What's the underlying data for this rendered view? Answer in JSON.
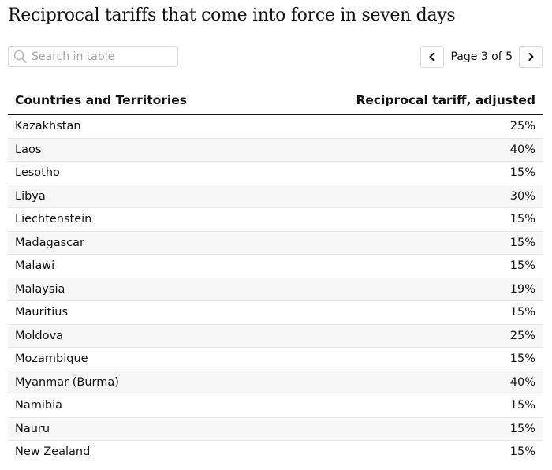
{
  "title": "Reciprocal tariffs that come into force in seven days",
  "search": {
    "placeholder": "Search in table",
    "value": "",
    "icon": "search-icon"
  },
  "pagination": {
    "label": "Page 3 of 5",
    "prev_icon": "chevron-left-icon",
    "next_icon": "chevron-right-icon"
  },
  "table": {
    "headers": [
      "Countries and Territories",
      "Reciprocal tariff, adjusted"
    ],
    "rows": [
      {
        "country": "Kazakhstan",
        "tariff": "25%"
      },
      {
        "country": "Laos",
        "tariff": "40%"
      },
      {
        "country": "Lesotho",
        "tariff": "15%"
      },
      {
        "country": "Libya",
        "tariff": "30%"
      },
      {
        "country": "Liechtenstein",
        "tariff": "15%"
      },
      {
        "country": "Madagascar",
        "tariff": "15%"
      },
      {
        "country": "Malawi",
        "tariff": "15%"
      },
      {
        "country": "Malaysia",
        "tariff": "19%"
      },
      {
        "country": "Mauritius",
        "tariff": "15%"
      },
      {
        "country": "Moldova",
        "tariff": "25%"
      },
      {
        "country": "Mozambique",
        "tariff": "15%"
      },
      {
        "country": "Myanmar (Burma)",
        "tariff": "40%"
      },
      {
        "country": "Namibia",
        "tariff": "15%"
      },
      {
        "country": "Nauru",
        "tariff": "15%"
      },
      {
        "country": "New Zealand",
        "tariff": "15%"
      }
    ]
  },
  "colors": {
    "text": "#121212",
    "stripe": "#f6f6f6",
    "border": "#dcdcdc",
    "placeholder": "#a7a7a7"
  }
}
